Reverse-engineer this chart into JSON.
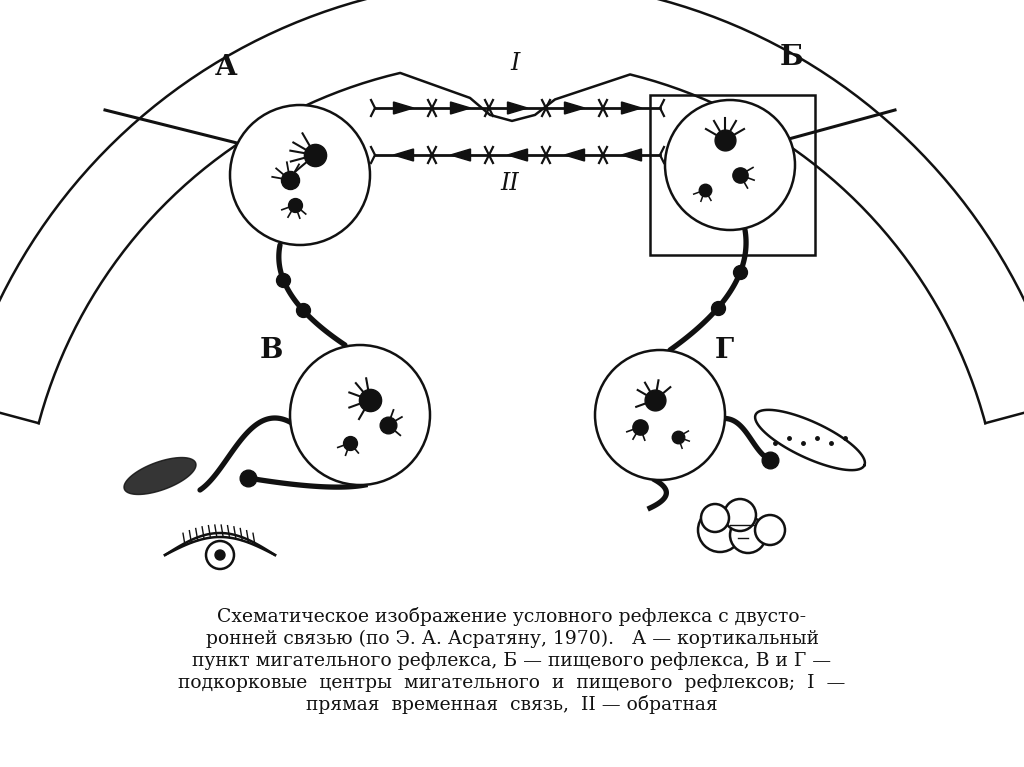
{
  "bg_color": "#ffffff",
  "caption_line1": "Схематическое изображение условного рефлекса с двусто-",
  "caption_line2": "ронней связью (по Э. А. Асратяну, 1970).   А — кортикальный",
  "caption_line3": "пункт мигательного рефлекса, Б — пищевого рефлекса, В и Г —",
  "caption_line4": "подкорковые  центры  мигательного  и  пищевого  рефлексов;  I  —",
  "caption_line5": "прямая  временная  связь,  II — обратная",
  "label_A": "А",
  "label_B": "Б",
  "label_V": "В",
  "label_G": "Г",
  "label_I": "I",
  "label_II": "II"
}
